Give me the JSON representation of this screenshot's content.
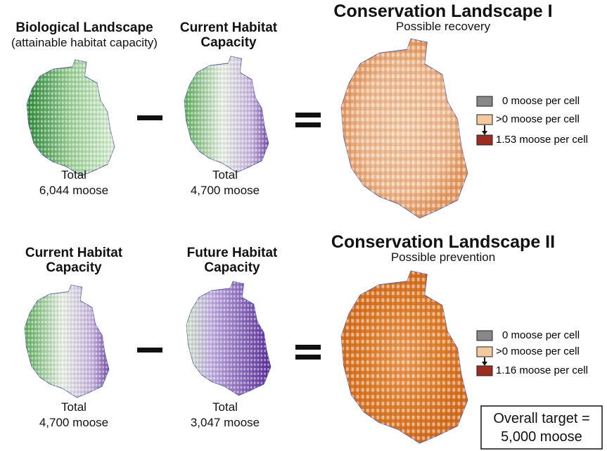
{
  "rows": [
    {
      "panels": [
        {
          "title": "Biological Landscape",
          "subtitle": "(attainable habitat capacity)",
          "total_label": "Total",
          "total": "6,044 moose"
        },
        {
          "title": "Current Habitat Capacity",
          "total_label": "Total",
          "total": "4,700 moose"
        }
      ],
      "result": {
        "title": "Conservation Landscape I",
        "subtitle": "Possible recovery",
        "legend": [
          "0 moose per cell",
          ">0 moose per cell",
          "1.53 moose per cell"
        ]
      }
    },
    {
      "panels": [
        {
          "title": "Current Habitat Capacity",
          "total_label": "Total",
          "total": "4,700 moose"
        },
        {
          "title": "Future Habitat Capacity",
          "total_label": "Total",
          "total": "3,047 moose"
        }
      ],
      "result": {
        "title": "Conservation Landscape II",
        "subtitle": "Possible prevention",
        "legend": [
          "0 moose per cell",
          ">0 moose per cell",
          "1.16 moose per cell"
        ]
      }
    }
  ],
  "target": {
    "line1": "Overall target =",
    "line2": "5,000 moose"
  }
}
